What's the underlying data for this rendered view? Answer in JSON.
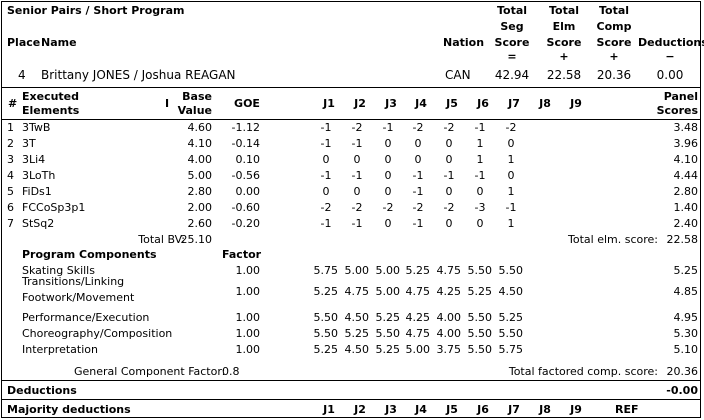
{
  "header": {
    "title": "Senior Pairs / Short Program",
    "place_label": "Place",
    "name_label": "Name",
    "nation_label": "Nation",
    "tss": [
      "Total",
      "Seg",
      "Score",
      "="
    ],
    "tes": [
      "Total",
      "Elm",
      "Score",
      "+"
    ],
    "pcs": [
      "Total",
      "Comp",
      "Score",
      "+"
    ],
    "ded": [
      "Deductions",
      "−"
    ]
  },
  "skater": {
    "place": "4",
    "name": "Brittany JONES / Joshua REAGAN",
    "nation": "CAN",
    "tss": "42.94",
    "tes": "22.58",
    "pcs": "20.36",
    "ded": "0.00"
  },
  "elements_header": {
    "num": "#",
    "executed": "Executed",
    "elements": "Elements",
    "info": "I",
    "base1": "Base",
    "base2": "Value",
    "goe": "GOE",
    "judges": [
      "J1",
      "J2",
      "J3",
      "J4",
      "J5",
      "J6",
      "J7",
      "J8",
      "J9"
    ],
    "panel1": "Panel",
    "panel2": "Scores"
  },
  "elements": [
    {
      "n": "1",
      "el": "3TwB",
      "base": "4.60",
      "goe": "-1.12",
      "j": [
        "-1",
        "-2",
        "-1",
        "-2",
        "-2",
        "-1",
        "-2"
      ],
      "score": "3.48"
    },
    {
      "n": "2",
      "el": "3T",
      "base": "4.10",
      "goe": "-0.14",
      "j": [
        "-1",
        "-1",
        "0",
        "0",
        "0",
        "1",
        "0"
      ],
      "score": "3.96"
    },
    {
      "n": "3",
      "el": "3Li4",
      "base": "4.00",
      "goe": "0.10",
      "j": [
        "0",
        "0",
        "0",
        "0",
        "0",
        "1",
        "1"
      ],
      "score": "4.10"
    },
    {
      "n": "4",
      "el": "3LoTh",
      "base": "5.00",
      "goe": "-0.56",
      "j": [
        "-1",
        "-1",
        "0",
        "-1",
        "-1",
        "-1",
        "0"
      ],
      "score": "4.44"
    },
    {
      "n": "5",
      "el": "FiDs1",
      "base": "2.80",
      "goe": "0.00",
      "j": [
        "0",
        "0",
        "0",
        "-1",
        "0",
        "0",
        "1"
      ],
      "score": "2.80"
    },
    {
      "n": "6",
      "el": "FCCoSp3p1",
      "base": "2.00",
      "goe": "-0.60",
      "j": [
        "-2",
        "-2",
        "-2",
        "-2",
        "-2",
        "-3",
        "-1"
      ],
      "score": "1.40"
    },
    {
      "n": "7",
      "el": "StSq2",
      "base": "2.60",
      "goe": "-0.20",
      "j": [
        "-1",
        "-1",
        "0",
        "-1",
        "0",
        "0",
        "1"
      ],
      "score": "2.40"
    }
  ],
  "totals": {
    "bv_label": "Total BV:",
    "bv": "25.10",
    "elm_label": "Total elm. score:",
    "elm": "22.58"
  },
  "components_header": {
    "label": "Program Components",
    "factor": "Factor"
  },
  "components": [
    {
      "name": [
        "Skating Skills"
      ],
      "factor": "1.00",
      "j": [
        "5.75",
        "5.00",
        "5.00",
        "5.25",
        "4.75",
        "5.50",
        "5.50"
      ],
      "score": "5.25"
    },
    {
      "name": [
        "Transitions/Linking",
        "Footwork/Movement"
      ],
      "factor": "1.00",
      "j": [
        "5.25",
        "4.75",
        "5.00",
        "4.75",
        "4.25",
        "5.25",
        "4.50"
      ],
      "score": "4.85"
    },
    {
      "name": [
        "Performance/Execution"
      ],
      "factor": "1.00",
      "j": [
        "5.50",
        "4.50",
        "5.25",
        "4.25",
        "4.00",
        "5.50",
        "5.25"
      ],
      "score": "4.95"
    },
    {
      "name": [
        "Choreography/Composition"
      ],
      "factor": "1.00",
      "j": [
        "5.50",
        "5.25",
        "5.50",
        "4.75",
        "4.00",
        "5.50",
        "5.50"
      ],
      "score": "5.30"
    },
    {
      "name": [
        "Interpretation"
      ],
      "factor": "1.00",
      "j": [
        "5.25",
        "4.50",
        "5.25",
        "5.00",
        "3.75",
        "5.50",
        "5.75"
      ],
      "score": "5.10"
    }
  ],
  "gcf": {
    "label": "General Component Factor:",
    "value": "0.8",
    "comp_label": "Total factored comp. score:",
    "comp": "20.36"
  },
  "deductions": {
    "label": "Deductions",
    "value": "-0.00"
  },
  "majority": {
    "label": "Majority deductions",
    "judges": [
      "J1",
      "J2",
      "J3",
      "J4",
      "J5",
      "J6",
      "J7",
      "J8",
      "J9"
    ],
    "ref": "REF"
  }
}
